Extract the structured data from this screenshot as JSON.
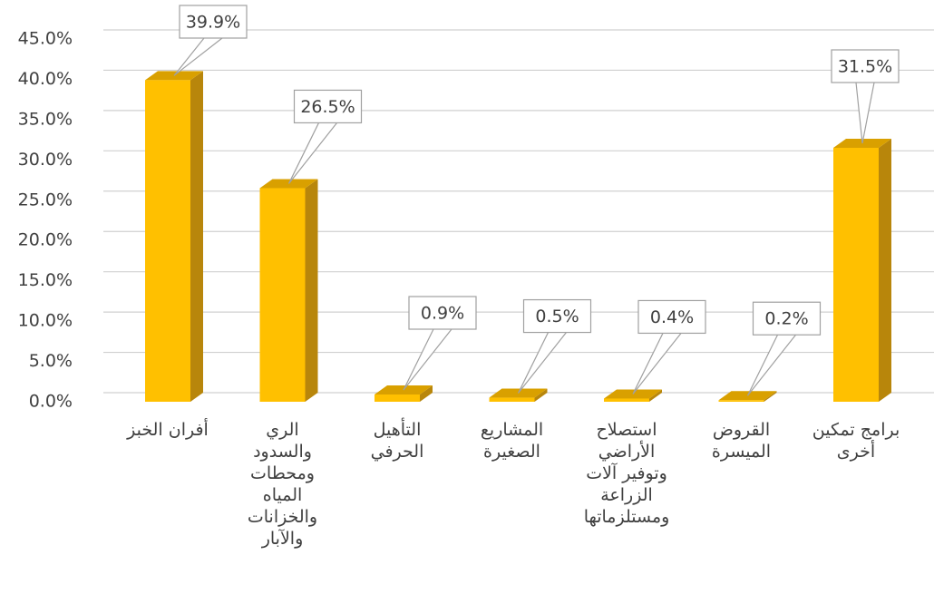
{
  "chart_data": {
    "type": "bar",
    "categories": [
      "أفران الخبز",
      "الري\nوالسدود\nومحطات\nالمياه\nوالخزانات\nوالآبار",
      "التأهيل\nالحرفي",
      "المشاريع\nالصغيرة",
      "استصلاح\nالأراضي\nوتوفير آلات\nالزراعة\nومستلزماتها",
      "القروض\nالميسرة",
      "برامج تمكين\nأخرى"
    ],
    "values": [
      39.9,
      26.5,
      0.9,
      0.5,
      0.4,
      0.2,
      31.5
    ],
    "value_labels": [
      "39.9%",
      "26.5%",
      "0.9%",
      "0.5%",
      "0.4%",
      "0.2%",
      "31.5%"
    ],
    "color": "#ffc000",
    "ylim": [
      0,
      45
    ],
    "yticks": [
      {
        "value": 0,
        "label": "0.0%"
      },
      {
        "value": 5,
        "label": "5.0%"
      },
      {
        "value": 10,
        "label": "10.0%"
      },
      {
        "value": 15,
        "label": "15.0%"
      },
      {
        "value": 20,
        "label": "20.0%"
      },
      {
        "value": 25,
        "label": "25.0%"
      },
      {
        "value": 30,
        "label": "30.0%"
      },
      {
        "value": 35,
        "label": "35.0%"
      },
      {
        "value": 40,
        "label": "40.0%"
      },
      {
        "value": 45,
        "label": "45.0%"
      }
    ],
    "grid": true
  }
}
